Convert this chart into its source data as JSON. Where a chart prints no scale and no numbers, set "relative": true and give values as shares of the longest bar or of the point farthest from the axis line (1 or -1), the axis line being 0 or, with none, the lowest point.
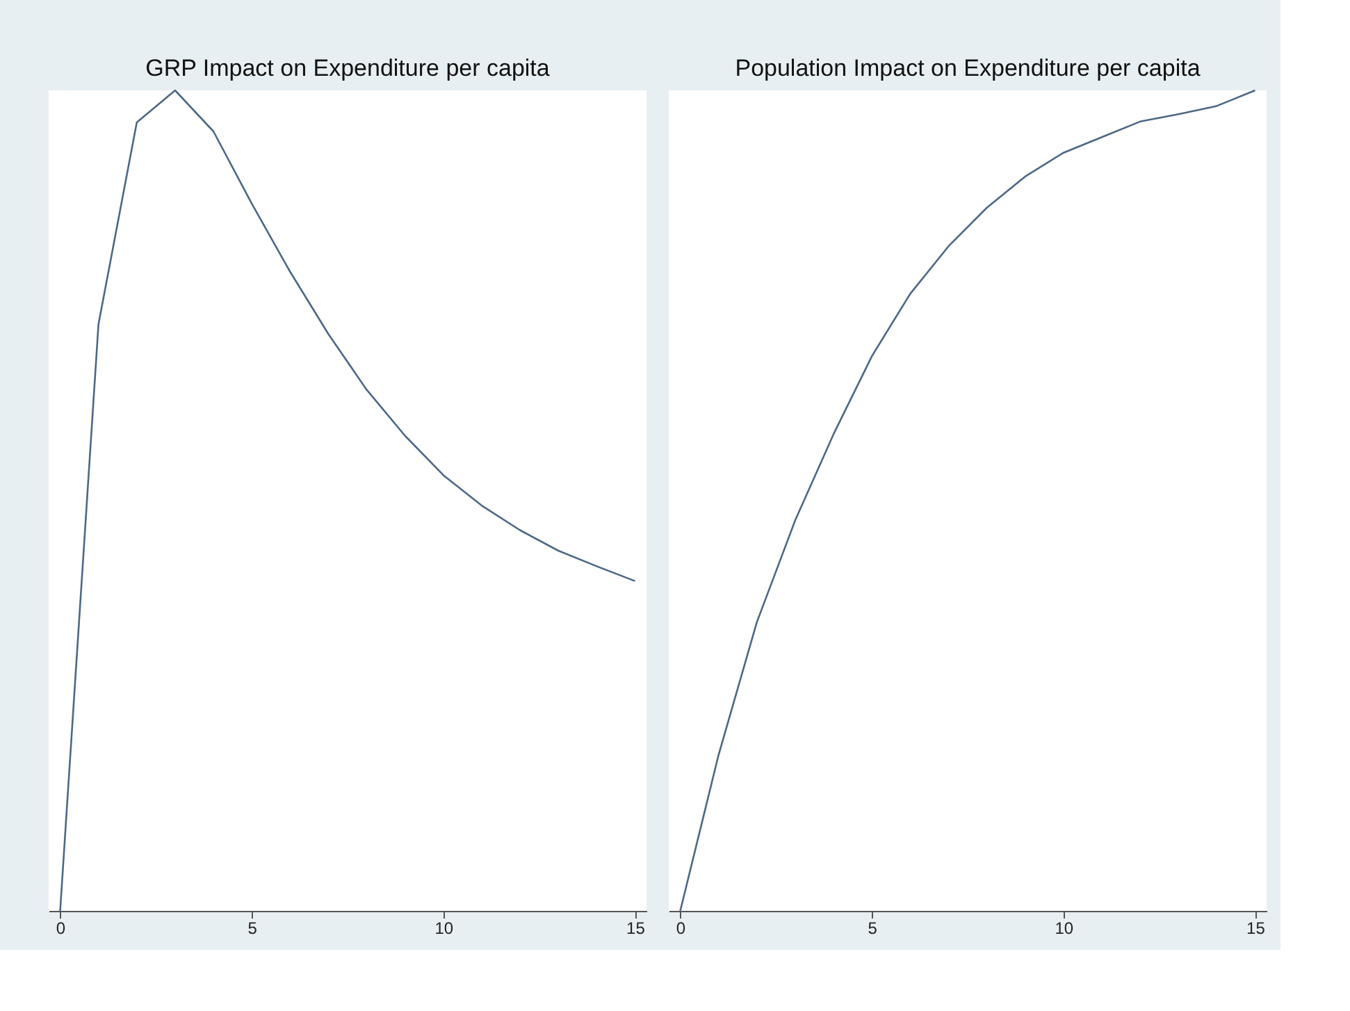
{
  "chart_data": [
    {
      "type": "line",
      "title": "GRP Impact on Expenditure per capita",
      "relative": true,
      "x": [
        0,
        1,
        2,
        3,
        4,
        5,
        6,
        7,
        8,
        9,
        10,
        11,
        12,
        13,
        14,
        15
      ],
      "series": [
        {
          "color": "#4d6886",
          "values": [
            0,
            0.715,
            0.961,
            1,
            0.95,
            0.862,
            0.779,
            0.703,
            0.635,
            0.579,
            0.531,
            0.494,
            0.464,
            0.439,
            0.42,
            0.402
          ]
        }
      ],
      "xlim": [
        -0.3,
        15.3
      ],
      "xticks": [
        0,
        5,
        10,
        15
      ],
      "tick_labels": "x"
    },
    {
      "type": "line",
      "title": "Population Impact on Expenditure per capita",
      "relative": true,
      "x": [
        0,
        1,
        2,
        3,
        4,
        5,
        6,
        7,
        8,
        9,
        10,
        11,
        12,
        13,
        14,
        15
      ],
      "series": [
        {
          "color": "#4d6886",
          "values": [
            0,
            0.19,
            0.352,
            0.476,
            0.581,
            0.676,
            0.752,
            0.81,
            0.857,
            0.895,
            0.924,
            0.943,
            0.962,
            0.971,
            0.981,
            1
          ]
        }
      ],
      "xlim": [
        -0.3,
        15.3
      ],
      "xticks": [
        0,
        5,
        10,
        15
      ],
      "tick_labels": "x"
    }
  ]
}
